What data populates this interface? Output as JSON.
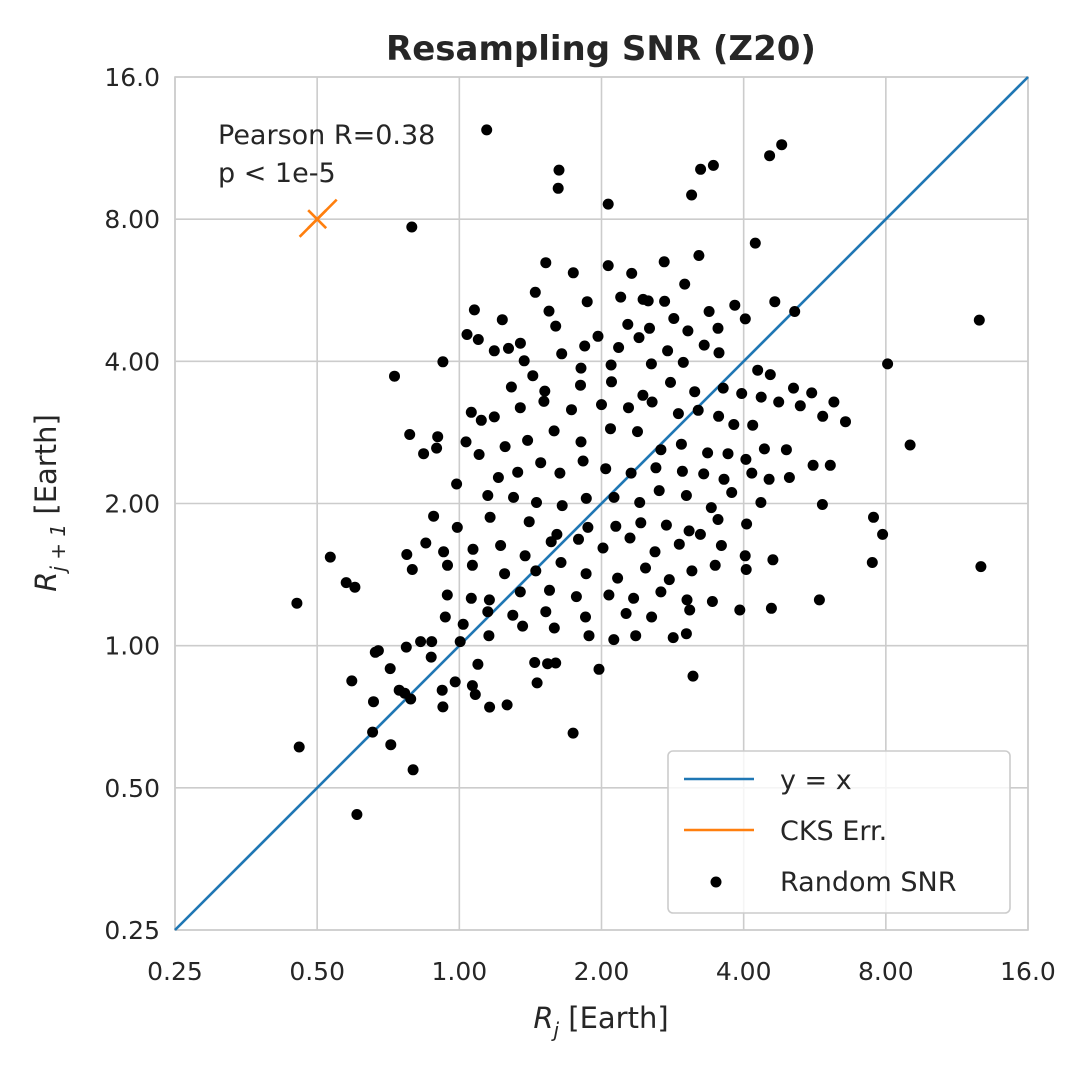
{
  "chart_data": {
    "type": "scatter",
    "title": "Resampling SNR (Z20)",
    "xlabel": {
      "symbol": "R",
      "sub": "j",
      "unit": " [Earth]"
    },
    "ylabel": {
      "symbol": "R",
      "sub": "j + 1",
      "unit": " [Earth]"
    },
    "xscale": "log2",
    "yscale": "log2",
    "xlim": [
      0.25,
      16.0
    ],
    "ylim": [
      0.25,
      16.0
    ],
    "xticks": [
      0.25,
      0.5,
      1.0,
      2.0,
      4.0,
      8.0,
      16.0
    ],
    "yticks": [
      0.25,
      0.5,
      1.0,
      2.0,
      4.0,
      8.0,
      16.0
    ],
    "xtick_labels": [
      "0.25",
      "0.50",
      "1.00",
      "2.00",
      "4.00",
      "8.00",
      "16.0"
    ],
    "ytick_labels": [
      "0.25",
      "0.50",
      "1.00",
      "2.00",
      "4.00",
      "8.00",
      "16.0"
    ],
    "grid": true,
    "legend_position": "lower-right",
    "annotations": [
      "Pearson R=0.38",
      "p < 1e-5"
    ],
    "colors": {
      "identity": "#1f77b4",
      "cks": "#ff7f0e",
      "points": "#000000"
    },
    "series": [
      {
        "name": "y = x",
        "kind": "line",
        "x": [
          0.25,
          16.0
        ],
        "y": [
          0.25,
          16.0
        ]
      },
      {
        "name": "CKS Err.",
        "kind": "errorbar",
        "center": [
          0.5,
          8.0
        ],
        "x": [
          0.459,
          0.55
        ],
        "y": [
          7.34,
          8.8
        ]
      },
      {
        "name": "Random SNR",
        "kind": "scatter",
        "points": [
          [
            1.143,
            12.36
          ],
          [
            1.626,
            10.16
          ],
          [
            1.619,
            9.3
          ],
          [
            2.066,
            8.61
          ],
          [
            3.103,
            9.0
          ],
          [
            3.243,
            10.2
          ],
          [
            3.451,
            10.4
          ],
          [
            4.54,
            10.9
          ],
          [
            4.814,
            11.5
          ],
          [
            0.793,
            7.7
          ],
          [
            4.234,
            7.12
          ],
          [
            3.215,
            6.7
          ],
          [
            2.715,
            6.5
          ],
          [
            4.656,
            5.35
          ],
          [
            5.131,
            5.1
          ],
          [
            12.62,
            4.89
          ],
          [
            1.524,
            6.47
          ],
          [
            1.743,
            6.16
          ],
          [
            2.066,
            6.38
          ],
          [
            2.317,
            6.14
          ],
          [
            3.0,
            5.83
          ],
          [
            3.38,
            5.1
          ],
          [
            3.83,
            5.26
          ],
          [
            2.45,
            5.41
          ],
          [
            2.72,
            5.36
          ],
          [
            1.448,
            5.6
          ],
          [
            1.548,
            5.11
          ],
          [
            1.865,
            5.35
          ],
          [
            2.196,
            5.47
          ],
          [
            2.511,
            5.37
          ],
          [
            1.076,
            5.14
          ],
          [
            1.233,
            4.9
          ],
          [
            1.038,
            4.56
          ],
          [
            1.097,
            4.45
          ],
          [
            1.271,
            4.26
          ],
          [
            1.186,
            4.21
          ],
          [
            1.347,
            4.37
          ],
          [
            1.6,
            4.75
          ],
          [
            1.966,
            4.52
          ],
          [
            2.274,
            4.79
          ],
          [
            2.527,
            4.7
          ],
          [
            2.845,
            4.93
          ],
          [
            3.047,
            4.64
          ],
          [
            3.53,
            4.7
          ],
          [
            4.031,
            4.92
          ],
          [
            3.3,
            4.33
          ],
          [
            2.76,
            4.21
          ],
          [
            2.401,
            4.49
          ],
          [
            2.174,
            4.28
          ],
          [
            1.843,
            4.31
          ],
          [
            1.647,
            4.15
          ],
          [
            1.372,
            4.01
          ],
          [
            0.923,
            3.99
          ],
          [
            0.729,
            3.72
          ],
          [
            1.431,
            3.73
          ],
          [
            1.81,
            3.87
          ],
          [
            2.096,
            3.93
          ],
          [
            2.551,
            3.95
          ],
          [
            2.98,
            3.98
          ],
          [
            3.547,
            4.17
          ],
          [
            4.284,
            3.83
          ],
          [
            4.554,
            3.75
          ],
          [
            5.101,
            3.51
          ],
          [
            5.573,
            3.43
          ],
          [
            8.069,
            3.95
          ],
          [
            1.289,
            3.53
          ],
          [
            1.517,
            3.46
          ],
          [
            1.805,
            3.56
          ],
          [
            2.1,
            3.62
          ],
          [
            2.447,
            3.39
          ],
          [
            2.8,
            3.61
          ],
          [
            3.15,
            3.45
          ],
          [
            3.62,
            3.51
          ],
          [
            3.961,
            3.42
          ],
          [
            4.358,
            3.36
          ],
          [
            4.744,
            3.28
          ],
          [
            5.272,
            3.22
          ],
          [
            5.88,
            3.06
          ],
          [
            6.21,
            3.28
          ],
          [
            6.573,
            2.98
          ],
          [
            1.06,
            3.12
          ],
          [
            1.113,
            3.0
          ],
          [
            1.186,
            3.05
          ],
          [
            1.346,
            3.19
          ],
          [
            1.51,
            3.29
          ],
          [
            1.728,
            3.16
          ],
          [
            2.0,
            3.24
          ],
          [
            2.281,
            3.19
          ],
          [
            2.56,
            3.28
          ],
          [
            2.91,
            3.1
          ],
          [
            3.204,
            3.15
          ],
          [
            3.539,
            3.06
          ],
          [
            3.812,
            2.94
          ],
          [
            4.18,
            2.93
          ],
          [
            0.785,
            2.8
          ],
          [
            0.9,
            2.77
          ],
          [
            0.895,
            2.62
          ],
          [
            0.84,
            2.55
          ],
          [
            1.033,
            2.7
          ],
          [
            1.101,
            2.54
          ],
          [
            1.25,
            2.64
          ],
          [
            1.395,
            2.72
          ],
          [
            1.587,
            2.85
          ],
          [
            1.81,
            2.7
          ],
          [
            2.09,
            2.88
          ],
          [
            2.384,
            2.84
          ],
          [
            2.672,
            2.6
          ],
          [
            2.952,
            2.67
          ],
          [
            3.355,
            2.56
          ],
          [
            3.706,
            2.55
          ],
          [
            4.044,
            2.48
          ],
          [
            4.426,
            2.61
          ],
          [
            4.926,
            2.6
          ],
          [
            5.612,
            2.41
          ],
          [
            6.101,
            2.41
          ],
          [
            9.005,
            2.66
          ],
          [
            0.987,
            2.2
          ],
          [
            1.21,
            2.27
          ],
          [
            1.329,
            2.33
          ],
          [
            1.487,
            2.44
          ],
          [
            1.633,
            2.32
          ],
          [
            1.828,
            2.46
          ],
          [
            2.041,
            2.37
          ],
          [
            2.31,
            2.32
          ],
          [
            2.607,
            2.38
          ],
          [
            2.967,
            2.34
          ],
          [
            3.292,
            2.31
          ],
          [
            3.635,
            2.25
          ],
          [
            4.162,
            2.32
          ],
          [
            4.528,
            2.25
          ],
          [
            4.999,
            2.27
          ],
          [
            1.149,
            2.08
          ],
          [
            1.302,
            2.06
          ],
          [
            1.457,
            2.01
          ],
          [
            1.651,
            1.98
          ],
          [
            1.857,
            2.05
          ],
          [
            2.126,
            2.06
          ],
          [
            2.41,
            2.01
          ],
          [
            2.65,
            2.13
          ],
          [
            3.026,
            2.08
          ],
          [
            3.416,
            1.96
          ],
          [
            3.773,
            2.11
          ],
          [
            4.35,
            2.01
          ],
          [
            5.873,
            1.99
          ],
          [
            7.534,
            1.87
          ],
          [
            0.882,
            1.88
          ],
          [
            0.99,
            1.78
          ],
          [
            1.162,
            1.87
          ],
          [
            1.406,
            1.83
          ],
          [
            1.609,
            1.72
          ],
          [
            1.872,
            1.78
          ],
          [
            2.144,
            1.79
          ],
          [
            2.422,
            1.82
          ],
          [
            2.744,
            1.8
          ],
          [
            3.065,
            1.75
          ],
          [
            3.529,
            1.85
          ],
          [
            4.058,
            1.81
          ],
          [
            0.849,
            1.65
          ],
          [
            0.926,
            1.58
          ],
          [
            1.069,
            1.6
          ],
          [
            1.223,
            1.63
          ],
          [
            1.378,
            1.55
          ],
          [
            1.565,
            1.66
          ],
          [
            1.788,
            1.68
          ],
          [
            2.015,
            1.61
          ],
          [
            2.298,
            1.69
          ],
          [
            2.596,
            1.58
          ],
          [
            2.923,
            1.64
          ],
          [
            3.24,
            1.72
          ],
          [
            3.589,
            1.63
          ],
          [
            4.03,
            1.55
          ],
          [
            4.613,
            1.52
          ],
          [
            7.876,
            1.72
          ],
          [
            0.533,
            1.54
          ],
          [
            0.774,
            1.56
          ],
          [
            0.795,
            1.45
          ],
          [
            0.944,
            1.48
          ],
          [
            1.066,
            1.48
          ],
          [
            1.247,
            1.42
          ],
          [
            1.452,
            1.44
          ],
          [
            1.642,
            1.5
          ],
          [
            1.855,
            1.42
          ],
          [
            2.163,
            1.39
          ],
          [
            2.478,
            1.46
          ],
          [
            2.784,
            1.38
          ],
          [
            3.108,
            1.44
          ],
          [
            3.481,
            1.48
          ],
          [
            4.05,
            1.45
          ],
          [
            7.488,
            1.5
          ],
          [
            12.72,
            1.47
          ],
          [
            0.576,
            1.36
          ],
          [
            0.601,
            1.33
          ],
          [
            0.943,
            1.28
          ],
          [
            1.06,
            1.26
          ],
          [
            1.158,
            1.25
          ],
          [
            1.346,
            1.3
          ],
          [
            1.552,
            1.31
          ],
          [
            1.77,
            1.27
          ],
          [
            2.073,
            1.28
          ],
          [
            2.339,
            1.26
          ],
          [
            2.672,
            1.3
          ],
          [
            3.034,
            1.25
          ],
          [
            3.434,
            1.24
          ],
          [
            0.453,
            1.23
          ],
          [
            0.934,
            1.15
          ],
          [
            1.019,
            1.11
          ],
          [
            1.149,
            1.18
          ],
          [
            1.298,
            1.16
          ],
          [
            1.524,
            1.18
          ],
          [
            1.85,
            1.15
          ],
          [
            2.255,
            1.17
          ],
          [
            2.553,
            1.15
          ],
          [
            3.074,
            1.19
          ],
          [
            3.926,
            1.19
          ],
          [
            4.579,
            1.2
          ],
          [
            5.786,
            1.25
          ],
          [
            0.828,
            1.02
          ],
          [
            0.874,
            1.02
          ],
          [
            1.004,
            1.02
          ],
          [
            1.155,
            1.05
          ],
          [
            1.361,
            1.1
          ],
          [
            1.589,
            1.09
          ],
          [
            1.882,
            1.05
          ],
          [
            2.124,
            1.03
          ],
          [
            2.363,
            1.05
          ],
          [
            2.837,
            1.04
          ],
          [
            3.025,
            1.06
          ],
          [
            0.664,
            0.968
          ],
          [
            0.674,
            0.976
          ],
          [
            0.772,
            0.993
          ],
          [
            0.872,
            0.946
          ],
          [
            1.095,
            0.913
          ],
          [
            1.444,
            0.921
          ],
          [
            1.538,
            0.916
          ],
          [
            1.6,
            0.919
          ],
          [
            1.976,
            0.891
          ],
          [
            0.714,
            0.894
          ],
          [
            0.592,
            0.842
          ],
          [
            1.066,
            0.823
          ],
          [
            1.461,
            0.834
          ],
          [
            3.124,
            0.862
          ],
          [
            0.766,
            0.793
          ],
          [
            0.746,
            0.805
          ],
          [
            0.92,
            0.805
          ],
          [
            0.98,
            0.838
          ],
          [
            1.081,
            0.788
          ],
          [
            0.658,
            0.761
          ],
          [
            0.789,
            0.771
          ],
          [
            0.923,
            0.742
          ],
          [
            1.159,
            0.741
          ],
          [
            1.262,
            0.749
          ],
          [
            0.655,
            0.656
          ],
          [
            0.716,
            0.617
          ],
          [
            0.798,
            0.546
          ],
          [
            0.458,
            0.61
          ],
          [
            1.741,
            0.653
          ],
          [
            0.607,
            0.439
          ]
        ]
      }
    ]
  }
}
